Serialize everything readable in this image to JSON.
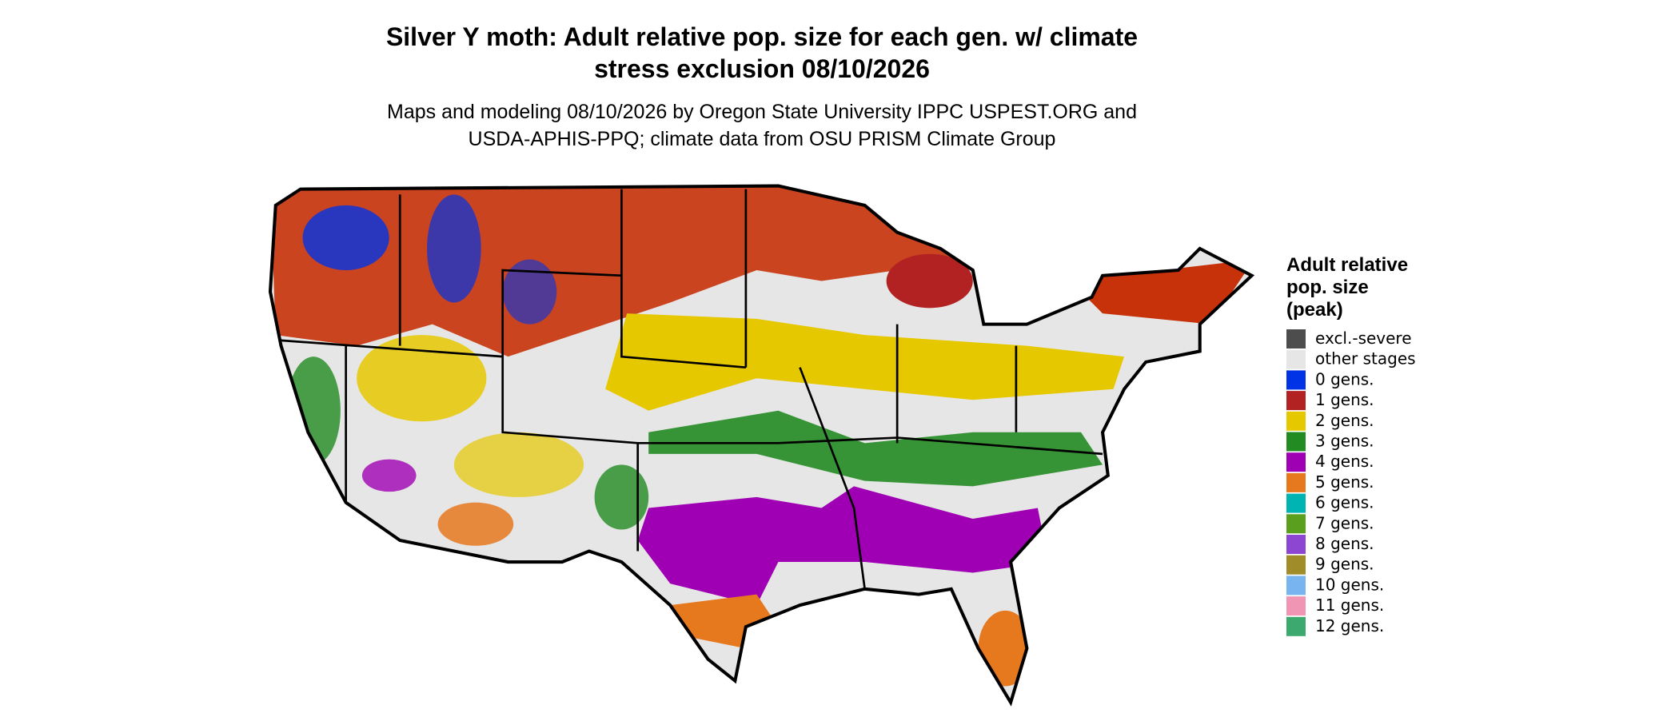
{
  "header": {
    "title": [
      "Silver Y moth: Adult relative pop. size for each gen. w/ climate",
      "stress exclusion 08/10/2026"
    ],
    "subtitle": [
      "Maps and modeling 08/10/2026 by Oregon State University IPPC USPEST.ORG and",
      "USDA-APHIS-PPQ; climate data from OSU PRISM Climate Group"
    ]
  },
  "legend": {
    "title": [
      "Adult relative",
      "pop. size",
      "(peak)"
    ],
    "items": [
      {
        "label": "excl.-severe",
        "color": "#4d4d4d"
      },
      {
        "label": "other stages",
        "color": "#e6e6e6"
      },
      {
        "label": "0 gens.",
        "color": "#0033e6"
      },
      {
        "label": "1 gens.",
        "color": "#b22222"
      },
      {
        "label": "2 gens.",
        "color": "#e6c800"
      },
      {
        "label": "3 gens.",
        "color": "#228b22"
      },
      {
        "label": "4 gens.",
        "color": "#a000b4"
      },
      {
        "label": "5 gens.",
        "color": "#e6781e"
      },
      {
        "label": "6 gens.",
        "color": "#00b4b4"
      },
      {
        "label": "7 gens.",
        "color": "#5aa01e"
      },
      {
        "label": "8 gens.",
        "color": "#8c46d2"
      },
      {
        "label": "9 gens.",
        "color": "#a08c28"
      },
      {
        "label": "10 gens.",
        "color": "#78b4f0"
      },
      {
        "label": "11 gens.",
        "color": "#f096b4"
      },
      {
        "label": "12 gens.",
        "color": "#3caa6e"
      }
    ]
  }
}
